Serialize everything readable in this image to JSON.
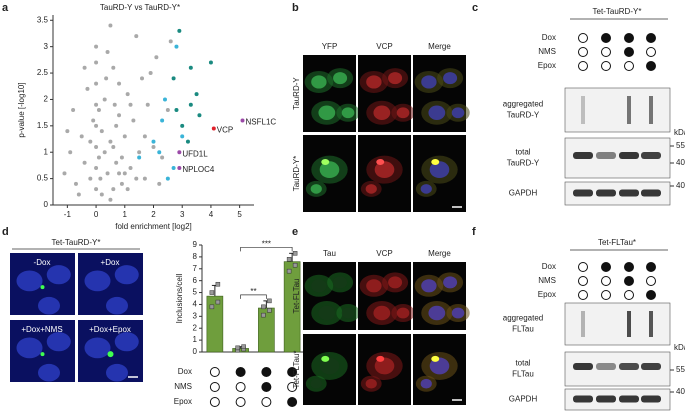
{
  "panel_labels": [
    "a",
    "b",
    "c",
    "d",
    "e",
    "f"
  ],
  "chart_data": [
    {
      "type": "scatter",
      "title": "TauRD-Y vs TauRD-Y*",
      "x_label": "fold enrichment [log2]",
      "y_label": "p-value [-log10]",
      "xlim": [
        -1.5,
        5.5
      ],
      "xticks": [
        -1,
        0,
        1,
        2,
        3,
        4,
        5
      ],
      "ylim": [
        0,
        3.6
      ],
      "yticks": [
        0,
        0.5,
        1,
        1.5,
        2,
        2.5,
        3,
        3.5
      ],
      "series": [
        {
          "color": "#a9a9a9",
          "x": [
            -1.1,
            -0.9,
            -0.7,
            -0.5,
            -0.4,
            -0.3,
            -0.2,
            -0.1,
            0,
            0,
            0,
            0,
            0,
            0,
            0,
            0,
            0.1,
            0.2,
            0.3,
            0.4,
            0.5,
            0.6,
            0.7,
            0.8,
            0.9,
            1.0,
            1.1,
            1.2,
            1.3,
            1.4,
            1.5,
            1.6,
            1.7,
            1.8,
            2.0,
            2.1,
            2.3,
            2.5,
            -0.6,
            -0.8,
            0.2,
            0.4,
            0.6,
            0.8,
            1.0,
            1.2,
            0.3,
            0.5,
            0.7,
            0.9,
            1.1,
            -0.2,
            -0.4,
            0.1,
            0.6,
            1.4,
            1.9,
            2.2,
            0.5,
            0.8,
            -1.0,
            1.7,
            2.6,
            0.35,
            0.65,
            0.15
          ],
          "values": [
            0.6,
            1.0,
            0.4,
            1.3,
            0.8,
            2.2,
            0.5,
            1.6,
            0.3,
            0.7,
            1.1,
            1.5,
            1.9,
            2.3,
            2.7,
            3.0,
            0.9,
            1.4,
            2.0,
            0.6,
            1.2,
            2.6,
            0.8,
            1.7,
            0.4,
            1.3,
            2.1,
            0.7,
            1.6,
            3.2,
            1.0,
            2.4,
            0.5,
            1.9,
            1.1,
            2.8,
            0.9,
            1.8,
            0.2,
            1.8,
            0.2,
            2.9,
            0.3,
            2.3,
            0.6,
            1.9,
            1.0,
            3.4,
            1.5,
            0.9,
            0.3,
            1.2,
            2.6,
            1.8,
            1.1,
            0.5,
            2.5,
            0.4,
            0.1,
            0.6,
            1.4,
            1.3,
            3.1,
            2.4,
            1.9,
            0.5
          ]
        },
        {
          "color": "#3ab4d8",
          "x": [
            1.5,
            2.0,
            2.3,
            2.5,
            2.4,
            2.8,
            3.0,
            2.2,
            2.7
          ],
          "values": [
            0.9,
            1.2,
            1.6,
            0.5,
            2.0,
            3.0,
            1.3,
            1.0,
            0.7
          ]
        },
        {
          "color": "#1a8a80",
          "x": [
            2.9,
            3.3,
            3.5,
            4.0,
            3.3,
            3.6,
            2.7,
            3.0,
            3.2,
            2.8
          ],
          "values": [
            3.3,
            2.6,
            2.1,
            2.7,
            1.9,
            1.7,
            2.4,
            1.5,
            1.2,
            1.8
          ]
        }
      ],
      "annotations": [
        {
          "text": "VCP",
          "x": 4.1,
          "y": 1.45,
          "color": "#e0202a"
        },
        {
          "text": "NSFL1C",
          "x": 5.1,
          "y": 1.6,
          "color": "#9b4aa8"
        },
        {
          "text": "UFD1L",
          "x": 2.9,
          "y": 1.0,
          "color": "#9b4aa8"
        },
        {
          "text": "NPLOC4",
          "x": 2.9,
          "y": 0.7,
          "color": "#9b4aa8"
        }
      ]
    },
    {
      "type": "bar",
      "y_label": "Inclusions/cell",
      "ylim": [
        0,
        9
      ],
      "yticks": [
        0,
        1,
        2,
        3,
        4,
        5,
        6,
        7,
        8,
        9
      ],
      "color": "#6f9e3d",
      "values": [
        4.7,
        0.3,
        3.7,
        7.6
      ],
      "errors": [
        0.9,
        0.15,
        0.6,
        0.7
      ],
      "points": [
        [
          3.8,
          4.2,
          5.0,
          5.7
        ],
        [
          0.15,
          0.25,
          0.35,
          0.45
        ],
        [
          3.1,
          3.5,
          3.8,
          4.3
        ],
        [
          6.8,
          7.3,
          7.8,
          8.3
        ]
      ],
      "significance": [
        {
          "between": [
            1,
            3
          ],
          "label": "***"
        },
        {
          "between": [
            1,
            2
          ],
          "label": "**"
        }
      ],
      "conditions": [
        {
          "label": "Dox",
          "states": [
            0,
            1,
            1,
            1
          ]
        },
        {
          "label": "NMS",
          "states": [
            0,
            0,
            1,
            0
          ]
        },
        {
          "label": "Epox",
          "states": [
            0,
            0,
            0,
            1
          ]
        }
      ]
    }
  ],
  "panel_b": {
    "columns": [
      "YFP",
      "VCP",
      "Merge"
    ],
    "rows": [
      "TauRD-Y",
      "TauRD-Y*"
    ]
  },
  "panel_c": {
    "title": "Tet-TauRD-Y*",
    "unit": "kDa",
    "conditions": [
      {
        "label": "Dox",
        "states": [
          0,
          1,
          1,
          1
        ]
      },
      {
        "label": "NMS",
        "states": [
          0,
          0,
          1,
          0
        ]
      },
      {
        "label": "Epox",
        "states": [
          0,
          0,
          0,
          1
        ]
      }
    ],
    "blots": [
      {
        "label": [
          "aggregated",
          "TauRD-Y"
        ],
        "markers": []
      },
      {
        "label": [
          "total",
          "TauRD-Y"
        ],
        "markers": [
          55,
          40
        ]
      },
      {
        "label": [
          "GAPDH"
        ],
        "markers": [
          40
        ]
      }
    ]
  },
  "panel_d": {
    "title": "Tet-TauRD-Y*",
    "images": [
      "-Dox",
      "+Dox",
      "+Dox+NMS",
      "+Dox+Epox"
    ]
  },
  "panel_e": {
    "columns": [
      "Tau",
      "VCP",
      "Merge"
    ],
    "rows": [
      "Tet-FLTau",
      "Tet-FLTau*"
    ]
  },
  "panel_f": {
    "title": "Tet-FLTau*",
    "unit": "kDa",
    "conditions": [
      {
        "label": "Dox",
        "states": [
          0,
          1,
          1,
          1
        ]
      },
      {
        "label": "NMS",
        "states": [
          0,
          0,
          1,
          0
        ]
      },
      {
        "label": "Epox",
        "states": [
          0,
          0,
          0,
          1
        ]
      }
    ],
    "blots": [
      {
        "label": [
          "aggregated",
          "FLTau"
        ],
        "markers": []
      },
      {
        "label": [
          "total",
          "FLTau"
        ],
        "markers": [
          55
        ]
      },
      {
        "label": [
          "GAPDH"
        ],
        "markers": [
          40
        ]
      }
    ]
  }
}
